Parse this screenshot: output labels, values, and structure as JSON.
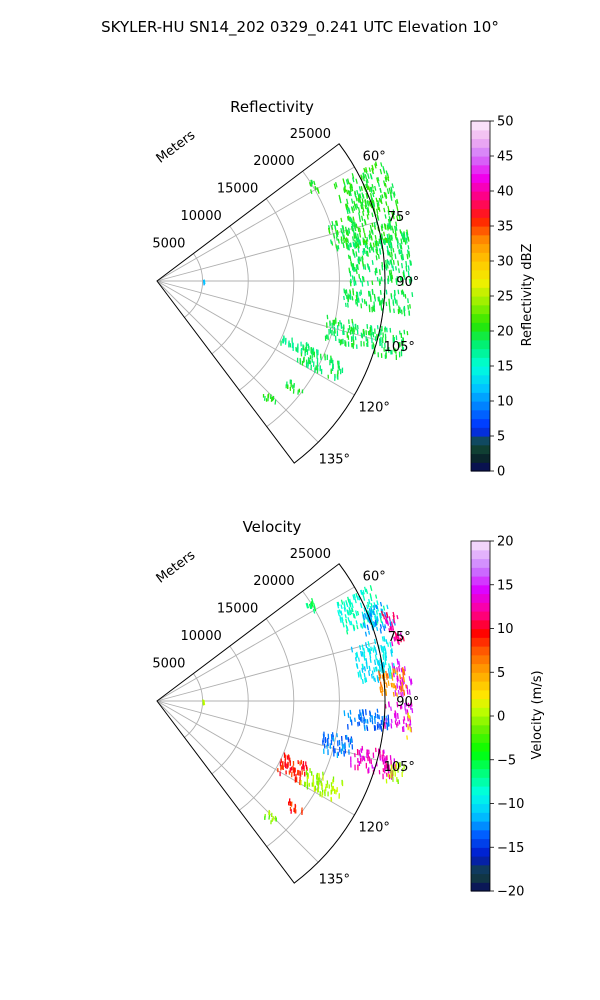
{
  "figure": {
    "suptitle": "SKYLER-HU  SN14_202  0329_0.241 UTC Elevation 10°"
  },
  "chart_data": [
    {
      "type": "heatmap",
      "projection": "polar-sector",
      "title": "Reflectivity",
      "range_axis_label": "Meters",
      "range_ticks": [
        "5000",
        "10000",
        "15000",
        "20000",
        "25000"
      ],
      "range_tick_values": [
        5000,
        10000,
        15000,
        20000,
        25000
      ],
      "rlim": [
        0,
        25000
      ],
      "azimuth_range_deg": [
        53,
        143
      ],
      "azimuth_ticks": [
        "60°",
        "75°",
        "90°",
        "105°",
        "120°",
        "135°"
      ],
      "azimuth_tick_values": [
        60,
        75,
        90,
        105,
        120,
        135
      ],
      "grid": true,
      "colorbar": {
        "label": "Reflectivity dBZ",
        "ticks": [
          "0",
          "5",
          "10",
          "15",
          "20",
          "25",
          "30",
          "35",
          "40",
          "45",
          "50"
        ],
        "range": [
          0,
          50
        ]
      },
      "echo_clusters": [
        {
          "azimuth": [
            56,
            60
          ],
          "range": [
            19500,
            20500
          ],
          "value": 20
        },
        {
          "azimuth": [
            61,
            80
          ],
          "range": [
            22000,
            28000
          ],
          "value": 20
        },
        {
          "azimuth": [
            71,
            79
          ],
          "range": [
            19500,
            22500
          ],
          "value": 20
        },
        {
          "azimuth": [
            78,
            90
          ],
          "range": [
            21000,
            28500
          ],
          "value": 19
        },
        {
          "azimuth": [
            92,
            97
          ],
          "range": [
            20500,
            28500
          ],
          "value": 19
        },
        {
          "azimuth": [
            101,
            108
          ],
          "range": [
            19000,
            28000
          ],
          "value": 19
        },
        {
          "azimuth": [
            113,
            119
          ],
          "range": [
            17500,
            22500
          ],
          "value": 19
        },
        {
          "azimuth": [
            112,
            116
          ],
          "range": [
            15000,
            18000
          ],
          "value": 18
        },
        {
          "azimuth": [
            126,
            129
          ],
          "range": [
            18000,
            20000
          ],
          "value": 20
        },
        {
          "azimuth": [
            134,
            137
          ],
          "range": [
            17000,
            18500
          ],
          "value": 20
        },
        {
          "azimuth": [
            88,
            89
          ],
          "range": [
            4800,
            5200
          ],
          "value": 11
        }
      ]
    },
    {
      "type": "heatmap",
      "projection": "polar-sector",
      "title": "Velocity",
      "range_axis_label": "Meters",
      "range_ticks": [
        "5000",
        "10000",
        "15000",
        "20000",
        "25000"
      ],
      "range_tick_values": [
        5000,
        10000,
        15000,
        20000,
        25000
      ],
      "rlim": [
        0,
        25000
      ],
      "azimuth_range_deg": [
        53,
        143
      ],
      "azimuth_ticks": [
        "60°",
        "75°",
        "90°",
        "105°",
        "120°",
        "135°"
      ],
      "azimuth_tick_values": [
        60,
        75,
        90,
        105,
        120,
        135
      ],
      "grid": true,
      "colorbar": {
        "label": "Velocity (m/s)",
        "ticks": [
          "−20",
          "−15",
          "−10",
          "−5",
          "0",
          "5",
          "10",
          "15",
          "20"
        ],
        "range": [
          -20,
          20
        ]
      },
      "echo_clusters": [
        {
          "azimuth": [
            56,
            60
          ],
          "range": [
            19500,
            20500
          ],
          "value": -6
        },
        {
          "azimuth": [
            61,
            70
          ],
          "range": [
            22000,
            27000
          ],
          "value": -8
        },
        {
          "azimuth": [
            66,
            72
          ],
          "range": [
            24000,
            27500
          ],
          "value": -12
        },
        {
          "azimuth": [
            68,
            76
          ],
          "range": [
            26500,
            28500
          ],
          "value": 12
        },
        {
          "azimuth": [
            74,
            84
          ],
          "range": [
            22000,
            26500
          ],
          "value": -10
        },
        {
          "azimuth": [
            80,
            88
          ],
          "range": [
            26000,
            28500
          ],
          "value": 14
        },
        {
          "azimuth": [
            82,
            88
          ],
          "range": [
            24500,
            27500
          ],
          "value": 6
        },
        {
          "azimuth": [
            92,
            97
          ],
          "range": [
            20500,
            25500
          ],
          "value": -13
        },
        {
          "azimuth": [
            90,
            96
          ],
          "range": [
            25000,
            28000
          ],
          "value": 14
        },
        {
          "azimuth": [
            92,
            98
          ],
          "range": [
            27500,
            30000
          ],
          "value": 3
        },
        {
          "azimuth": [
            100,
            106
          ],
          "range": [
            18500,
            22000
          ],
          "value": -13
        },
        {
          "azimuth": [
            102,
            108
          ],
          "range": [
            22000,
            27000
          ],
          "value": 13
        },
        {
          "azimuth": [
            104,
            110
          ],
          "range": [
            26500,
            29500
          ],
          "value": 0
        },
        {
          "azimuth": [
            112,
            120
          ],
          "range": [
            15000,
            18000
          ],
          "value": 9
        },
        {
          "azimuth": [
            113,
            119
          ],
          "range": [
            18000,
            22500
          ],
          "value": 0
        },
        {
          "azimuth": [
            126,
            129
          ],
          "range": [
            18000,
            20000
          ],
          "value": 9
        },
        {
          "azimuth": [
            134,
            137
          ],
          "range": [
            17000,
            18500
          ],
          "value": -1
        },
        {
          "azimuth": [
            88,
            89
          ],
          "range": [
            4800,
            5200
          ],
          "value": 1
        }
      ]
    }
  ]
}
